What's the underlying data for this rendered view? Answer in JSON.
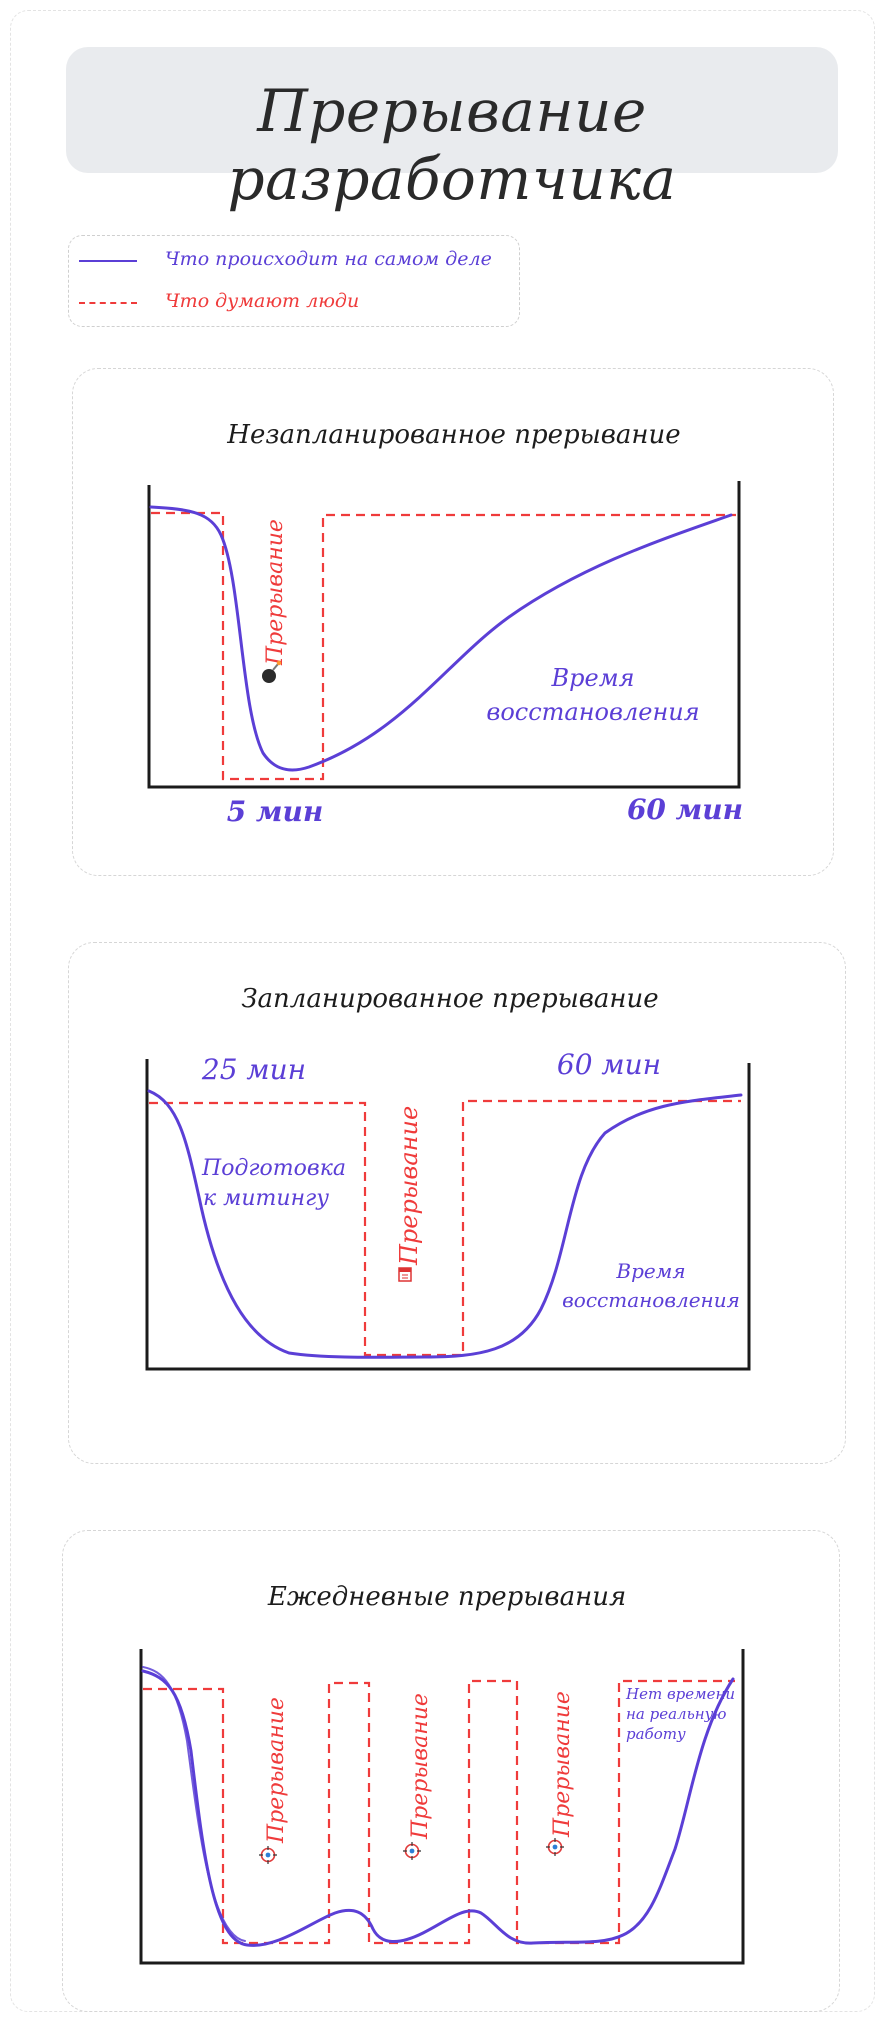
{
  "title": "Прерывание разработчика",
  "legend": {
    "actual": "Что происходит на самом деле",
    "thought": "Что думают люди"
  },
  "colors": {
    "actual": "#5b3fd6",
    "thought": "#ef3b3b",
    "axis": "#1b1b1b",
    "title_box": "#e9ebee"
  },
  "panels": {
    "unplanned": {
      "title": "Незапланированное прерывание",
      "interrupt_label": "Прерывание",
      "interrupt_icon": "bomb-icon",
      "recovery_label_line1": "Время",
      "recovery_label_line2": "восстановления",
      "left_time": "5 мин",
      "right_time": "60 мин"
    },
    "planned": {
      "title": "Запланированное прерывание",
      "left_time": "25 мин",
      "right_time": "60 мин",
      "prep_label_line1": "Подготовка",
      "prep_label_line2": "к митингу",
      "interrupt_label": "Прерывание",
      "interrupt_icon": "calendar-icon",
      "recovery_label_line1": "Время",
      "recovery_label_line2": "восстановления"
    },
    "daily": {
      "title": "Ежедневные прерывания",
      "interrupt_labels": [
        "Прерывание",
        "Прерывание",
        "Прерывание"
      ],
      "interrupt_icon": "target-icon",
      "no_time_line1": "Нет времени",
      "no_time_line2": "на реальную",
      "no_time_line3": "работу"
    }
  }
}
